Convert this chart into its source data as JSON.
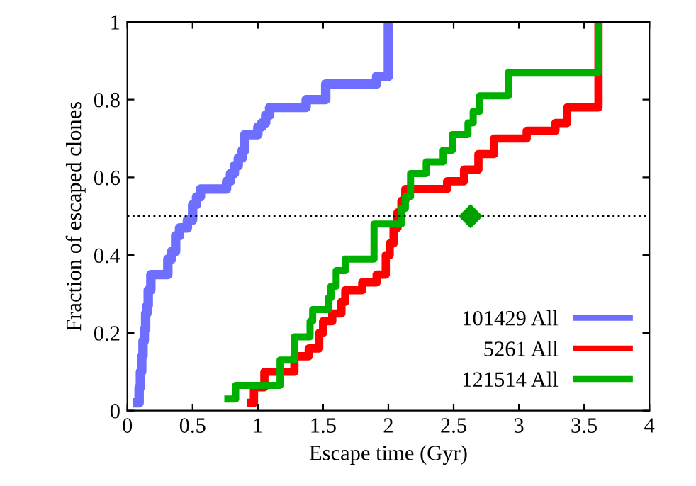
{
  "chart_data": {
    "type": "step",
    "xlabel": "Escape time (Gyr)",
    "ylabel": "Fraction of escaped clones",
    "xlim": [
      0,
      4
    ],
    "ylim": [
      0,
      1
    ],
    "xticks": [
      0,
      0.5,
      1,
      1.5,
      2,
      2.5,
      3,
      3.5,
      4
    ],
    "yticks": [
      0,
      0.2,
      0.4,
      0.6,
      0.8,
      1
    ],
    "grid": false,
    "legend": "bottom right",
    "marker": "none",
    "line_style": "solid",
    "ref_lines": [
      {
        "axis": "y",
        "value": 0.5,
        "label": null,
        "color": "#000000",
        "line_style": "dotted"
      }
    ],
    "series": [
      {
        "name": "101429 All",
        "color": "#6e6eff",
        "x": [
          0.08,
          0.09,
          0.1,
          0.11,
          0.12,
          0.13,
          0.14,
          0.15,
          0.16,
          0.18,
          0.31,
          0.34,
          0.37,
          0.4,
          0.46,
          0.5,
          0.53,
          0.56,
          0.76,
          0.79,
          0.82,
          0.85,
          0.88,
          0.9,
          1.0,
          1.03,
          1.06,
          1.09,
          1.37,
          1.52,
          1.91,
          2.0
        ],
        "values": [
          0.02,
          0.06,
          0.1,
          0.14,
          0.18,
          0.21,
          0.25,
          0.27,
          0.31,
          0.35,
          0.39,
          0.41,
          0.45,
          0.47,
          0.49,
          0.53,
          0.55,
          0.57,
          0.59,
          0.61,
          0.63,
          0.65,
          0.67,
          0.71,
          0.73,
          0.74,
          0.76,
          0.78,
          0.8,
          0.84,
          0.86,
          1.0
        ]
      },
      {
        "name": "5261 All",
        "color": "#ff0000",
        "x": [
          0.95,
          0.97,
          1.05,
          1.28,
          1.39,
          1.47,
          1.5,
          1.57,
          1.64,
          1.67,
          1.8,
          1.91,
          1.98,
          2.01,
          2.04,
          2.07,
          2.1,
          2.13,
          2.45,
          2.58,
          2.69,
          2.81,
          3.06,
          3.28,
          3.37,
          3.61
        ],
        "values": [
          0.02,
          0.06,
          0.1,
          0.14,
          0.16,
          0.2,
          0.23,
          0.25,
          0.28,
          0.31,
          0.33,
          0.35,
          0.4,
          0.43,
          0.47,
          0.51,
          0.54,
          0.57,
          0.59,
          0.62,
          0.66,
          0.7,
          0.72,
          0.74,
          0.78,
          1.0
        ]
      },
      {
        "name": "121514 All",
        "color": "#00b000",
        "x": [
          0.77,
          0.83,
          1.17,
          1.28,
          1.4,
          1.42,
          1.54,
          1.56,
          1.6,
          1.67,
          1.89,
          2.1,
          2.13,
          2.17,
          2.29,
          2.42,
          2.49,
          2.61,
          2.65,
          2.7,
          2.92,
          3.61
        ],
        "values": [
          0.03,
          0.065,
          0.13,
          0.19,
          0.23,
          0.26,
          0.29,
          0.32,
          0.36,
          0.39,
          0.48,
          0.52,
          0.55,
          0.61,
          0.64,
          0.67,
          0.71,
          0.74,
          0.77,
          0.81,
          0.87,
          1.0
        ]
      },
      {
        "type": "scatter",
        "marker": "diamond",
        "color": "#00a000",
        "x": [
          2.63
        ],
        "values": [
          0.5
        ]
      }
    ]
  }
}
